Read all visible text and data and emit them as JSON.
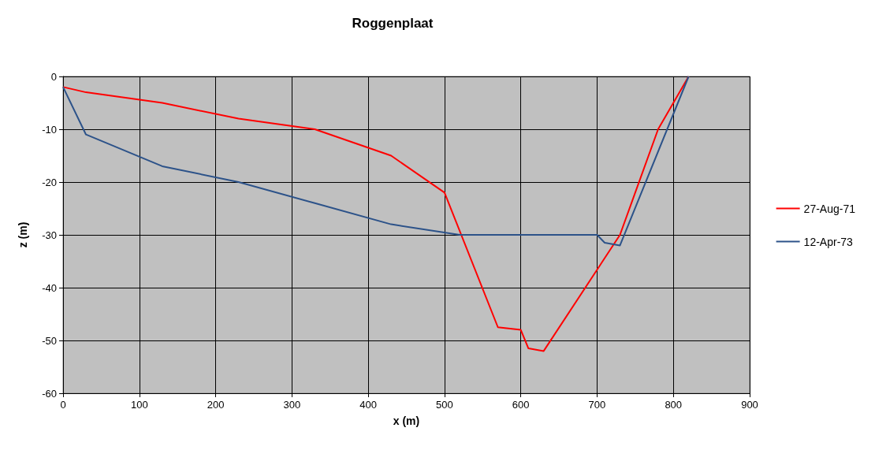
{
  "chart_data": {
    "type": "line",
    "title": "Roggenplaat",
    "xlabel": "x (m)",
    "ylabel": "z (m)",
    "xlim": [
      0,
      900
    ],
    "xticks": [
      0,
      100,
      200,
      300,
      400,
      500,
      600,
      700,
      800,
      900
    ],
    "ylim": [
      -60,
      0
    ],
    "yticks": [
      -60,
      -50,
      -40,
      -30,
      -20,
      -10,
      0
    ],
    "grid": true,
    "legend": "right",
    "marker": "none",
    "line_style": "solid",
    "series": [
      {
        "name": "27-Aug-71",
        "color": "#ff0000",
        "x": [
          0,
          30,
          130,
          230,
          330,
          430,
          500,
          570,
          600,
          610,
          630,
          730,
          780,
          820
        ],
        "values": [
          -2,
          -3,
          -5,
          -8,
          -10,
          -15,
          -22,
          -47.5,
          -48,
          -51.5,
          -52,
          -30,
          -10,
          0
        ]
      },
      {
        "name": "12-Apr-73",
        "color": "#2c5289",
        "x": [
          0,
          30,
          130,
          230,
          330,
          430,
          520,
          700,
          710,
          730,
          820
        ],
        "values": [
          -2,
          -11,
          -17,
          -20,
          -24,
          -28,
          -30,
          -30,
          -31.5,
          -32,
          0
        ]
      }
    ]
  }
}
